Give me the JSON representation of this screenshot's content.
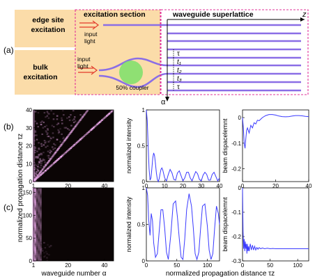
{
  "colors": {
    "panel_fill": "#fbdca9",
    "dashed_box": "#e2339a",
    "waveguide": "#8a6ee6",
    "arrow_red": "#e23a2a",
    "coupler": "#7be06a",
    "line": "#3a3aff",
    "heatmap_bg": "#0b0505",
    "heatmap_mark": "#ffb8ff"
  },
  "panel_a": {
    "label": "(a)",
    "edge_label": [
      "edge site",
      "excitation"
    ],
    "bulk_label": [
      "bulk",
      "excitation"
    ],
    "section_title": "excitation section",
    "superlattice_title": "waveguide superlattice",
    "input1": [
      "input",
      "light"
    ],
    "input2": [
      "input",
      "light"
    ],
    "coupler_label": "50% coupler",
    "z_label": "z",
    "alpha_label": "α",
    "couplings": [
      "τ",
      "t₁",
      "t₂",
      "t₃",
      "τ"
    ]
  },
  "panel_b_label": "(b)",
  "panel_c_label": "(c)",
  "shared_labels": {
    "heatmap_ylabel": "normalized propagation distance τz",
    "heatmap_xlabel": "waveguide number α",
    "bottom_xlabel": "normalized propagation distance τz"
  },
  "chart_data": [
    {
      "id": "b-heatmap",
      "type": "heatmap",
      "xlim": [
        1,
        45
      ],
      "ylim": [
        0,
        40
      ],
      "xticks": [
        "1",
        "20",
        "40"
      ],
      "yticks": [
        "0",
        "10",
        "20",
        "30",
        "40"
      ]
    },
    {
      "id": "b-intensity",
      "type": "line",
      "ylabel": "normalized intensity",
      "xlim": [
        0,
        40
      ],
      "ylim": [
        0,
        1
      ],
      "xticks": [
        "0",
        "10",
        "20",
        "30",
        "40"
      ],
      "yticks": [
        "0",
        "0.5",
        "1"
      ],
      "x": [
        0,
        0.5,
        1,
        1.5,
        2,
        2.5,
        3,
        3.5,
        4,
        4.5,
        5,
        5.5,
        6,
        6.5,
        7,
        7.5,
        8,
        8.5,
        9,
        10,
        11,
        12,
        13,
        14,
        15,
        16,
        17,
        18,
        19,
        20,
        21,
        22,
        23,
        24,
        25,
        26,
        27,
        28,
        29,
        30,
        31,
        32,
        33,
        34,
        35,
        36,
        37,
        38,
        39,
        40
      ],
      "y": [
        1.0,
        0.85,
        0.5,
        0.18,
        0.02,
        0.05,
        0.18,
        0.33,
        0.4,
        0.36,
        0.25,
        0.12,
        0.03,
        0.0,
        0.04,
        0.11,
        0.17,
        0.19,
        0.16,
        0.05,
        0.01,
        0.1,
        0.17,
        0.12,
        0.03,
        0.02,
        0.12,
        0.15,
        0.08,
        0.01,
        0.05,
        0.13,
        0.13,
        0.05,
        0.01,
        0.08,
        0.14,
        0.11,
        0.03,
        0.01,
        0.09,
        0.13,
        0.1,
        0.02,
        0.02,
        0.1,
        0.13,
        0.07,
        0.01,
        0.05
      ]
    },
    {
      "id": "b-displacement",
      "type": "line",
      "ylabel": "beam dispacelemnt",
      "xlim": [
        0,
        40
      ],
      "ylim": [
        -0.25,
        0.03
      ],
      "xticks": [
        "0",
        "20",
        "40"
      ],
      "yticks": [
        "0",
        "-0.1",
        "-0.2"
      ],
      "x": [
        0,
        0.5,
        1,
        1.5,
        2,
        2.5,
        3,
        4,
        5,
        6,
        7,
        8,
        9,
        10,
        12,
        14,
        16,
        18,
        20,
        22,
        24,
        26,
        28,
        30,
        32,
        34,
        36,
        38,
        40
      ],
      "y": [
        0,
        -0.04,
        -0.1,
        -0.12,
        -0.08,
        -0.05,
        -0.04,
        -0.06,
        -0.03,
        -0.04,
        -0.02,
        -0.025,
        -0.01,
        -0.012,
        0.0,
        0.008,
        0.012,
        0.012,
        0.01,
        0.006,
        0.004,
        0.003,
        0.004,
        0.006,
        0.008,
        0.008,
        0.007,
        0.005,
        0.004
      ]
    },
    {
      "id": "c-heatmap",
      "type": "heatmap",
      "xlim": [
        1,
        45
      ],
      "ylim": [
        0,
        160
      ],
      "xticks": [
        "1",
        "20",
        "40"
      ],
      "yticks": [
        "0",
        "50",
        "100",
        "150"
      ]
    },
    {
      "id": "c-intensity",
      "type": "line",
      "ylabel": "normalized intensity",
      "xlim": [
        0,
        120
      ],
      "ylim": [
        0,
        1
      ],
      "xticks": [
        "0",
        "50",
        "100"
      ],
      "yticks": [
        "0",
        "0.5",
        "1"
      ],
      "x": [
        0,
        2,
        4,
        6,
        8,
        10,
        12,
        15,
        18,
        21,
        24,
        27,
        30,
        33,
        36,
        40,
        44,
        48,
        51,
        54,
        57,
        60,
        63,
        66,
        70,
        74,
        77,
        80,
        83,
        86,
        89,
        92,
        96,
        100,
        103,
        106,
        109,
        112,
        115,
        118,
        120
      ],
      "y": [
        1.0,
        0.9,
        0.55,
        0.35,
        0.65,
        0.55,
        0.25,
        0.05,
        0.1,
        0.4,
        0.7,
        0.7,
        0.45,
        0.12,
        0.02,
        0.35,
        0.78,
        0.82,
        0.6,
        0.3,
        0.05,
        0.02,
        0.3,
        0.7,
        0.92,
        0.75,
        0.45,
        0.1,
        0.02,
        0.12,
        0.45,
        0.75,
        0.78,
        0.48,
        0.15,
        0.02,
        0.1,
        0.45,
        0.75,
        0.65,
        0.5
      ]
    },
    {
      "id": "c-displacement",
      "type": "line",
      "ylabel": "beam dispacelemnt",
      "xlim": [
        0,
        120
      ],
      "ylim": [
        -0.3,
        0.0
      ],
      "xticks": [
        "0",
        "50",
        "100"
      ],
      "yticks": [
        "0",
        "-0.1",
        "-0.2",
        "-0.3"
      ],
      "x": [
        0,
        1,
        2,
        3,
        4,
        5,
        6,
        7,
        8,
        9,
        10,
        11,
        12,
        14,
        16,
        18,
        20,
        22,
        24,
        26,
        28,
        30,
        33,
        36,
        40,
        45,
        50,
        55,
        60,
        70,
        80,
        90,
        100,
        110,
        120
      ],
      "y": [
        0,
        -0.18,
        -0.25,
        -0.21,
        -0.26,
        -0.22,
        -0.25,
        -0.23,
        -0.27,
        -0.23,
        -0.26,
        -0.24,
        -0.26,
        -0.23,
        -0.255,
        -0.235,
        -0.255,
        -0.24,
        -0.255,
        -0.245,
        -0.252,
        -0.245,
        -0.25,
        -0.247,
        -0.25,
        -0.248,
        -0.25,
        -0.249,
        -0.25,
        -0.25,
        -0.25,
        -0.25,
        -0.25,
        -0.25,
        -0.25
      ]
    }
  ]
}
